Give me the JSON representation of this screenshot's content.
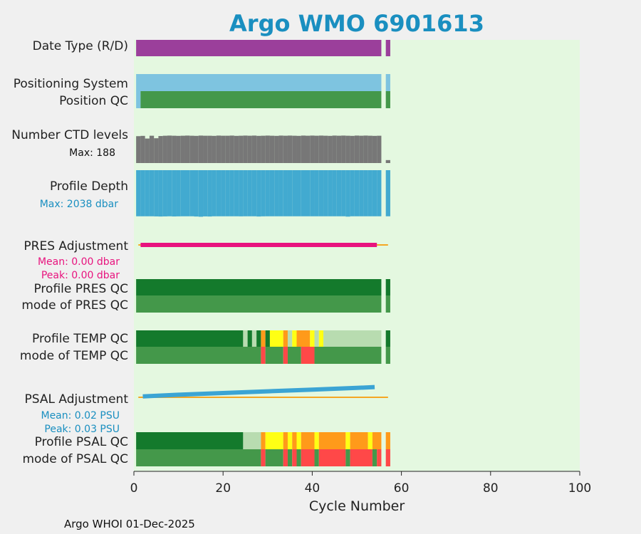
{
  "chart_data": {
    "type": "table",
    "title": "Argo WMO 6901613",
    "xlabel": "Cycle Number",
    "xlim": [
      0,
      100
    ],
    "x_ticks": [
      "0",
      "20",
      "40",
      "60",
      "80",
      "100"
    ],
    "legend": "none",
    "grid": false,
    "footer": "Argo WHOI 01-Dec-2025",
    "rows": {
      "date_type": "Date Type (R/D)",
      "positioning_system": "Positioning System",
      "position_qc": "Position QC",
      "ctd_levels": "Number CTD levels",
      "ctd_max": "Max: 188",
      "profile_depth": "Profile Depth",
      "depth_max": "Max: 2038 dbar",
      "pres_adjustment": "PRES Adjustment",
      "pres_mean": "Mean: 0.00 dbar",
      "pres_peak": "Peak: 0.00 dbar",
      "profile_pres_qc": "Profile PRES QC",
      "mode_pres_qc": "mode of PRES QC",
      "profile_temp_qc": "Profile TEMP QC",
      "mode_temp_qc": "mode of TEMP QC",
      "psal_adjustment": "PSAL Adjustment",
      "psal_mean": "Mean: 0.02 PSU",
      "psal_peak": "Peak: 0.03 PSU",
      "profile_psal_qc": "Profile PSAL QC",
      "mode_psal_qc": "mode of PSAL QC"
    },
    "colors": {
      "title": "#1a8fc0",
      "background": "#e4f8e0",
      "date_type": "#9b3f9b",
      "positioning": "#7ec4e0",
      "qc_good": "#44984a",
      "qc_dark": "#147a2c",
      "qc_light": "#b8dcb0",
      "qc_orange": "#ff9a1a",
      "qc_yellow": "#ffff14",
      "qc_red": "#ff4848",
      "ctd": "#777777",
      "depth": "#42aad0",
      "pres": "#e8137e",
      "psal": "#3ba4d4",
      "zero_line": "#f5a623",
      "depth_note": "#1a8fc0",
      "pres_note": "#e8137e",
      "psal_note": "#1a8fc0"
    },
    "series": {
      "date_type": [
        [
          1,
          55,
          "#9b3f9b"
        ],
        [
          57,
          57,
          "#9b3f9b"
        ]
      ],
      "positioning": [
        [
          1,
          55,
          "#7ec4e0"
        ],
        [
          57,
          57,
          "#7ec4e0"
        ]
      ],
      "position_qc": [
        [
          1,
          1,
          "#7ec4e0"
        ],
        [
          2,
          55,
          "#44984a"
        ],
        [
          57,
          57,
          "#44984a"
        ]
      ],
      "ctd_levels": {
        "cycles": [
          1,
          2,
          3,
          4,
          5,
          6,
          7,
          8,
          9,
          10,
          11,
          12,
          13,
          14,
          15,
          16,
          17,
          18,
          19,
          20,
          21,
          22,
          23,
          24,
          25,
          26,
          27,
          28,
          29,
          30,
          31,
          32,
          33,
          34,
          35,
          36,
          37,
          38,
          39,
          40,
          41,
          42,
          43,
          44,
          45,
          46,
          47,
          48,
          49,
          50,
          51,
          52,
          53,
          54,
          55,
          57
        ],
        "values": [
          182,
          184,
          166,
          185,
          168,
          183,
          185,
          186,
          185,
          184,
          185,
          186,
          185,
          184,
          186,
          185,
          185,
          184,
          186,
          185,
          185,
          186,
          184,
          185,
          186,
          185,
          186,
          184,
          185,
          186,
          185,
          184,
          186,
          185,
          186,
          185,
          184,
          186,
          185,
          186,
          185,
          186,
          185,
          184,
          186,
          185,
          186,
          185,
          184,
          186,
          185,
          186,
          185,
          184,
          185,
          20
        ],
        "max": 188
      },
      "profile_depth": {
        "cycles": [
          1,
          2,
          3,
          4,
          5,
          6,
          7,
          8,
          9,
          10,
          11,
          12,
          13,
          14,
          15,
          16,
          17,
          18,
          19,
          20,
          21,
          22,
          23,
          24,
          25,
          26,
          27,
          28,
          29,
          30,
          31,
          32,
          33,
          34,
          35,
          36,
          37,
          38,
          39,
          40,
          41,
          42,
          43,
          44,
          45,
          46,
          47,
          48,
          49,
          50,
          51,
          52,
          53,
          54,
          55,
          57
        ],
        "values": [
          2000,
          2000,
          2000,
          2000,
          2005,
          2010,
          2005,
          2000,
          2008,
          2003,
          2000,
          2000,
          2000,
          2010,
          2020,
          2005,
          2010,
          2000,
          2000,
          2000,
          2000,
          2000,
          2000,
          2003,
          2000,
          2000,
          2000,
          2010,
          2002,
          2000,
          2000,
          2000,
          2000,
          2000,
          2000,
          2000,
          2000,
          2000,
          2000,
          2000,
          2000,
          2000,
          2000,
          2000,
          2000,
          2000,
          2000,
          2015,
          2000,
          2000,
          2000,
          2000,
          2000,
          2000,
          2000,
          2000
        ],
        "max": 2038
      },
      "pres_adjustment": {
        "x": [
          1.5,
          54.5
        ],
        "y": [
          0.0,
          0.0
        ],
        "zero_line": [
          1,
          57
        ]
      },
      "psal_adjustment": {
        "x": [
          2,
          10,
          20,
          30,
          40,
          50,
          54
        ],
        "y": [
          0.002,
          0.006,
          0.01,
          0.014,
          0.018,
          0.022,
          0.024
        ],
        "zero_line": [
          1,
          57
        ]
      },
      "profile_pres_qc": [
        [
          1,
          55,
          "#147a2c"
        ],
        [
          57,
          57,
          "#147a2c"
        ]
      ],
      "mode_pres_qc": [
        [
          1,
          55,
          "#44984a"
        ],
        [
          57,
          57,
          "#44984a"
        ]
      ],
      "profile_temp_qc": [
        [
          1,
          24,
          "#147a2c"
        ],
        [
          25,
          25,
          "#b8dcb0"
        ],
        [
          26,
          26,
          "#147a2c"
        ],
        [
          27,
          27,
          "#b8dcb0"
        ],
        [
          28,
          28,
          "#147a2c"
        ],
        [
          29,
          29,
          "#ff9a1a"
        ],
        [
          30,
          30,
          "#147a2c"
        ],
        [
          31,
          33,
          "#ffff14"
        ],
        [
          34,
          34,
          "#ff9a1a"
        ],
        [
          35,
          35,
          "#b8dcb0"
        ],
        [
          36,
          36,
          "#ffff14"
        ],
        [
          37,
          39,
          "#ff9a1a"
        ],
        [
          40,
          40,
          "#ffff14"
        ],
        [
          41,
          41,
          "#b8dcb0"
        ],
        [
          42,
          42,
          "#ffff14"
        ],
        [
          43,
          55,
          "#b8dcb0"
        ],
        [
          57,
          57,
          "#147a2c"
        ]
      ],
      "mode_temp_qc": [
        [
          1,
          28,
          "#44984a"
        ],
        [
          29,
          29,
          "#ff4848"
        ],
        [
          30,
          33,
          "#44984a"
        ],
        [
          34,
          34,
          "#ff4848"
        ],
        [
          35,
          37,
          "#44984a"
        ],
        [
          38,
          40,
          "#ff4848"
        ],
        [
          41,
          55,
          "#44984a"
        ],
        [
          57,
          57,
          "#44984a"
        ]
      ],
      "profile_psal_qc": [
        [
          1,
          24,
          "#147a2c"
        ],
        [
          25,
          28,
          "#b8dcb0"
        ],
        [
          29,
          29,
          "#ff9a1a"
        ],
        [
          30,
          33,
          "#ffff14"
        ],
        [
          34,
          34,
          "#ff9a1a"
        ],
        [
          35,
          35,
          "#ffff14"
        ],
        [
          36,
          36,
          "#ff9a1a"
        ],
        [
          37,
          37,
          "#ffff14"
        ],
        [
          38,
          40,
          "#ff9a1a"
        ],
        [
          41,
          41,
          "#ffff14"
        ],
        [
          42,
          47,
          "#ff9a1a"
        ],
        [
          48,
          48,
          "#ffff14"
        ],
        [
          49,
          52,
          "#ff9a1a"
        ],
        [
          53,
          53,
          "#ffff14"
        ],
        [
          54,
          55,
          "#ff9a1a"
        ],
        [
          57,
          57,
          "#ff9a1a"
        ]
      ],
      "mode_psal_qc": [
        [
          1,
          28,
          "#44984a"
        ],
        [
          29,
          29,
          "#ff4848"
        ],
        [
          30,
          33,
          "#44984a"
        ],
        [
          34,
          34,
          "#ff4848"
        ],
        [
          35,
          35,
          "#44984a"
        ],
        [
          36,
          36,
          "#ff4848"
        ],
        [
          37,
          37,
          "#44984a"
        ],
        [
          38,
          40,
          "#ff4848"
        ],
        [
          41,
          41,
          "#44984a"
        ],
        [
          42,
          47,
          "#ff4848"
        ],
        [
          48,
          48,
          "#44984a"
        ],
        [
          49,
          53,
          "#ff4848"
        ],
        [
          54,
          54,
          "#44984a"
        ],
        [
          55,
          55,
          "#ff4848"
        ],
        [
          57,
          57,
          "#ff4848"
        ]
      ]
    }
  }
}
